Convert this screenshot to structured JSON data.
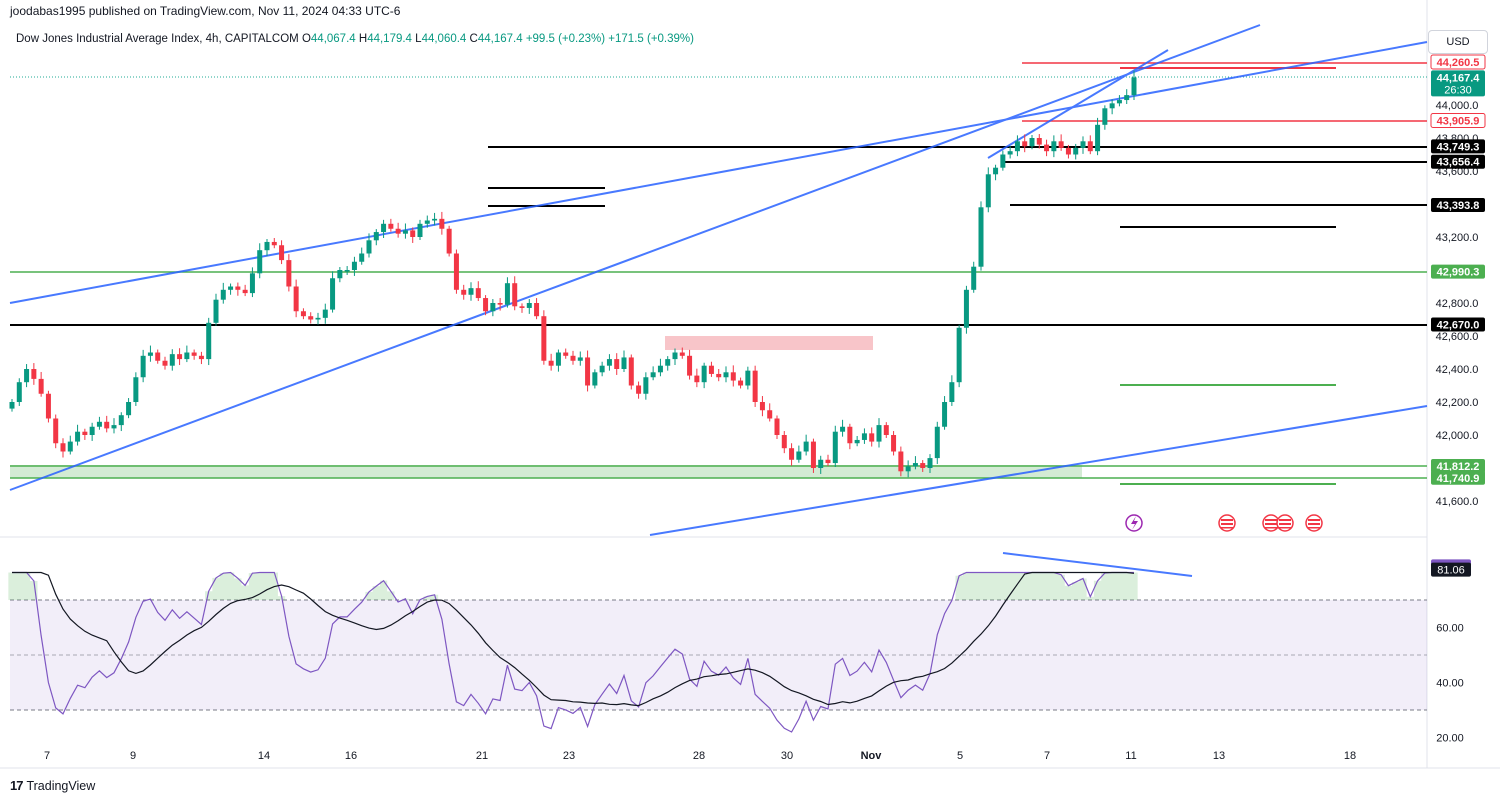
{
  "header": {
    "published_line": "joodabas1995 published on TradingView.com, Nov 11, 2024 04:33 UTC-6",
    "symbol_title": "Dow Jones Industrial Average Index, 4h, CAPITALCOM",
    "ohlc": {
      "o_label": "O",
      "o": "44,067.4",
      "h_label": "H",
      "h": "44,179.4",
      "l_label": "L",
      "l": "44,060.4",
      "c_label": "C",
      "c": "44,167.4",
      "chg": "+99.5 (+0.23%)",
      "chg2": "+171.5 (+0.39%)"
    }
  },
  "currency_button": "USD",
  "footer": {
    "brand": "TradingView",
    "logo": "17"
  },
  "icons": [
    "lightning-icon",
    "us-flag-icon"
  ],
  "chart_data": [
    {
      "type": "candlestick",
      "title": "Dow Jones Industrial Average Index, 4h, CAPITALCOM",
      "ylim": [
        41450,
        44560
      ],
      "price_ticks": [
        "41,600.0",
        "41,800.0",
        "42,000.0",
        "42,200.0",
        "42,400.0",
        "42,600.0",
        "42,800.0",
        "43,000.0",
        "43,200.0",
        "43,400.0",
        "43,600.0",
        "43,800.0",
        "44,000.0"
      ],
      "x_ticks": [
        "7",
        "9",
        "14",
        "16",
        "21",
        "23",
        "28",
        "30",
        "Nov",
        "5",
        "7",
        "11",
        "13",
        "18"
      ],
      "last_price": {
        "value": "44,167.4",
        "countdown": "26:30"
      },
      "level_labels": [
        {
          "value": "44,260.5",
          "color": "#f23645"
        },
        {
          "value": "43,905.9",
          "color": "#f23645"
        },
        {
          "value": "43,749.3",
          "color": "#000000"
        },
        {
          "value": "43,656.4",
          "color": "#000000"
        },
        {
          "value": "43,393.8",
          "color": "#000000"
        },
        {
          "value": "42,990.3",
          "color": "#4caf50"
        },
        {
          "value": "42,670.0",
          "color": "#000000"
        },
        {
          "value": "41,812.2",
          "color": "#4caf50"
        },
        {
          "value": "41,740.9",
          "color": "#4caf50"
        }
      ],
      "close_series": [
        42200,
        42320,
        42400,
        42340,
        42250,
        42100,
        41950,
        41900,
        41960,
        42020,
        42000,
        42050,
        42080,
        42040,
        42060,
        42120,
        42200,
        42350,
        42480,
        42500,
        42450,
        42420,
        42490,
        42460,
        42500,
        42480,
        42460,
        42680,
        42820,
        42880,
        42900,
        42880,
        42860,
        42980,
        43120,
        43170,
        43150,
        43060,
        42900,
        42750,
        42720,
        42700,
        42710,
        42760,
        42950,
        43000,
        43000,
        43050,
        43100,
        43180,
        43230,
        43280,
        43250,
        43220,
        43240,
        43200,
        43280,
        43300,
        43310,
        43250,
        43100,
        42880,
        42850,
        42890,
        42830,
        42750,
        42800,
        42790,
        42920,
        42780,
        42770,
        42800,
        42720,
        42450,
        42420,
        42500,
        42480,
        42450,
        42470,
        42300,
        42380,
        42420,
        42460,
        42400,
        42470,
        42300,
        42250,
        42350,
        42380,
        42420,
        42460,
        42500,
        42480,
        42360,
        42320,
        42420,
        42370,
        42350,
        42380,
        42330,
        42300,
        42390,
        42200,
        42150,
        42100,
        42000,
        41920,
        41850,
        41900,
        41960,
        41800,
        41850,
        41830,
        42020,
        42050,
        41950,
        41970,
        42010,
        41960,
        42060,
        42000,
        41900,
        41780,
        41810,
        41830,
        41800,
        41860,
        42050,
        42200,
        42320,
        42650,
        42880,
        43020,
        43380,
        43580,
        43620,
        43700,
        43720,
        43780,
        43750,
        43800,
        43760,
        43720,
        43780,
        43740,
        43700,
        43740,
        43780,
        43720,
        43880,
        43980,
        44010,
        44030,
        44060,
        44167
      ]
    },
    {
      "type": "line",
      "ylim": [
        15,
        85
      ],
      "y_ticks": [
        "20.00",
        "40.00",
        "60.00"
      ],
      "reference_levels": [
        70,
        50,
        30
      ],
      "badges": [
        {
          "value": "82.21",
          "color": "#7e57c2"
        },
        {
          "value": "81.06",
          "color": "#131722"
        }
      ]
    }
  ]
}
